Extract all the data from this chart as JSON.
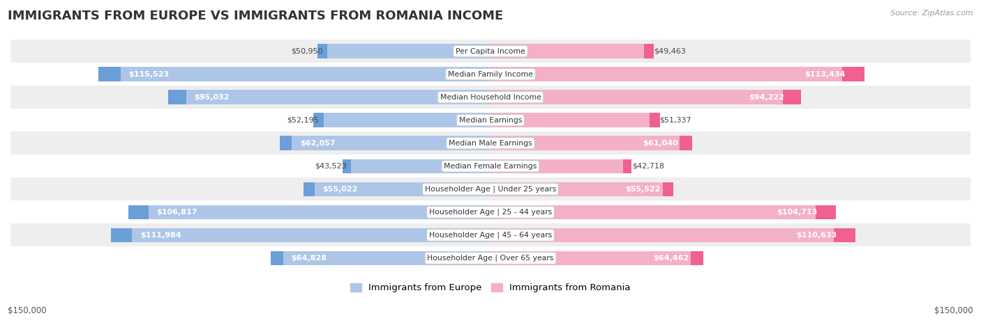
{
  "title": "IMMIGRANTS FROM EUROPE VS IMMIGRANTS FROM ROMANIA INCOME",
  "source": "Source: ZipAtlas.com",
  "categories": [
    "Per Capita Income",
    "Median Family Income",
    "Median Household Income",
    "Median Earnings",
    "Median Male Earnings",
    "Median Female Earnings",
    "Householder Age | Under 25 years",
    "Householder Age | 25 - 44 years",
    "Householder Age | 45 - 64 years",
    "Householder Age | Over 65 years"
  ],
  "europe_values": [
    50950,
    115523,
    95032,
    52195,
    62057,
    43523,
    55022,
    106817,
    111984,
    64828
  ],
  "romania_values": [
    49463,
    113434,
    94222,
    51337,
    61040,
    42718,
    55522,
    104713,
    110633,
    64462
  ],
  "europe_labels": [
    "$50,950",
    "$115,523",
    "$95,032",
    "$52,195",
    "$62,057",
    "$43,523",
    "$55,022",
    "$106,817",
    "$111,984",
    "$64,828"
  ],
  "romania_labels": [
    "$49,463",
    "$113,434",
    "$94,222",
    "$51,337",
    "$61,040",
    "$42,718",
    "$55,522",
    "$104,713",
    "$110,633",
    "$64,462"
  ],
  "europe_color_dark": "#6a9fd8",
  "europe_color_light": "#adc6e8",
  "romania_color_dark": "#f06090",
  "romania_color_light": "#f4b0c8",
  "max_value": 150000,
  "bar_height": 0.62,
  "row_bg_color_odd": "#eeeeee",
  "row_bg_color_even": "#ffffff",
  "legend_europe": "Immigrants from Europe",
  "legend_romania": "Immigrants from Romania",
  "xlabel_left": "$150,000",
  "xlabel_right": "$150,000",
  "inside_threshold": 55000,
  "label_fontsize": 8.0,
  "cat_fontsize": 7.8,
  "title_fontsize": 13
}
